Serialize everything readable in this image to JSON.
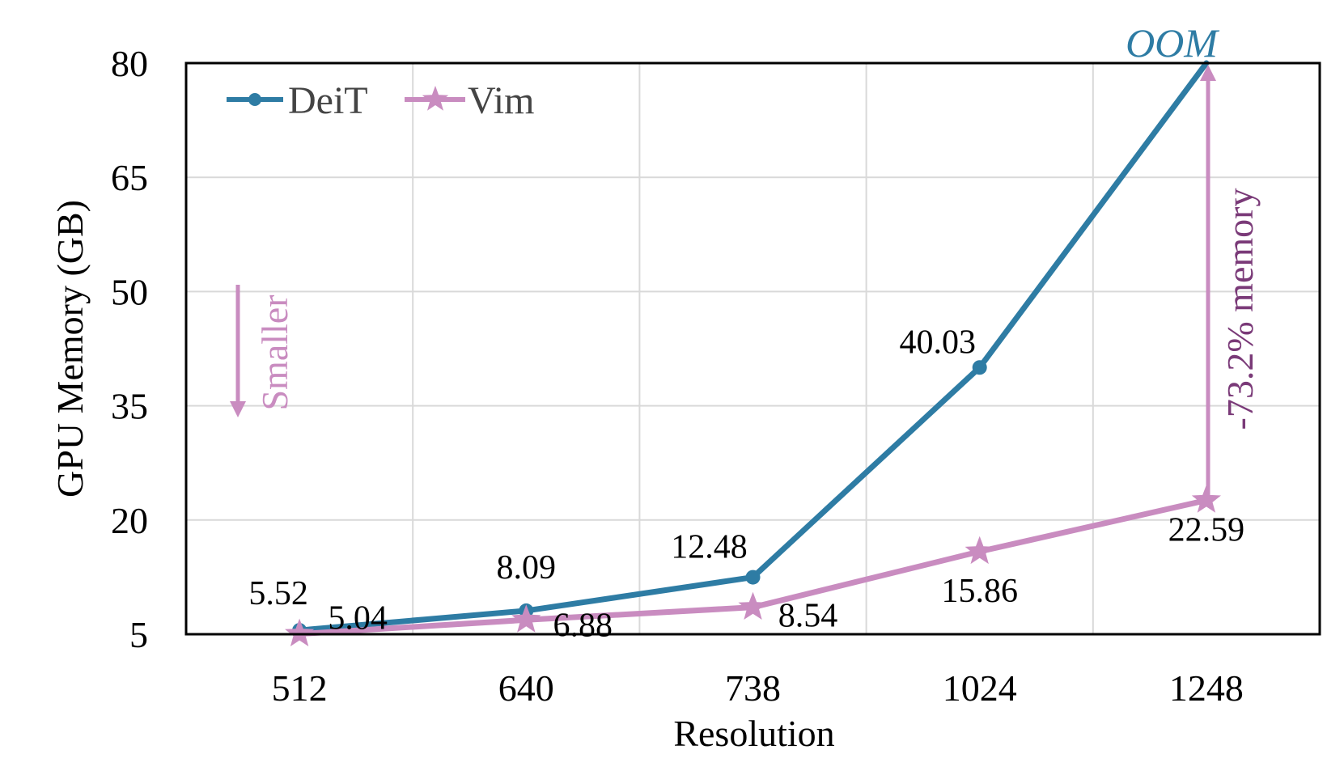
{
  "chart_data": {
    "type": "line",
    "categories": [
      "512",
      "640",
      "738",
      "1024",
      "1248"
    ],
    "xlabel": "Resolution",
    "ylabel": "GPU Memory (GB)",
    "ylim": [
      5,
      80
    ],
    "yticks": [
      "5",
      "20",
      "35",
      "50",
      "65",
      "80"
    ],
    "grid": true,
    "legend_placement": "top-left",
    "series": [
      {
        "name": "DeiT",
        "color": "#2e7ca4",
        "marker": "circle",
        "values": [
          5.52,
          8.09,
          12.48,
          40.03,
          80
        ],
        "labels": [
          "5.52",
          "8.09",
          "12.48",
          "40.03",
          ""
        ]
      },
      {
        "name": "Vim",
        "color": "#c98cc0",
        "marker": "star",
        "values": [
          5.04,
          6.88,
          8.54,
          15.86,
          22.59
        ],
        "labels": [
          "5.04",
          "6.88",
          "8.54",
          "15.86",
          "22.59"
        ]
      }
    ],
    "annotations": {
      "oom": "OOM",
      "memory_reduction": "-73.2% memory",
      "smaller": "Smaller"
    }
  }
}
